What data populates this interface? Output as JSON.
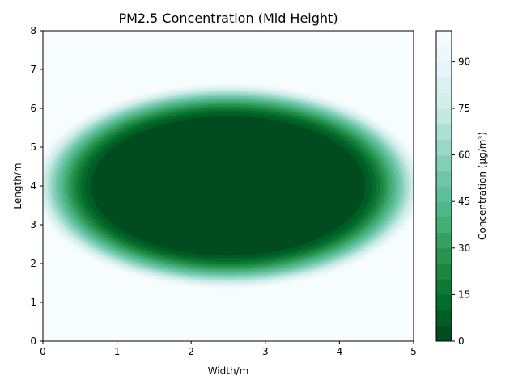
{
  "chart_data": {
    "type": "heatmap",
    "subtype": "filled-contour",
    "title": "PM2.5 Concentration (Mid Height)",
    "xlabel": "Width/m",
    "ylabel": "Length/m",
    "xlim": [
      0,
      5
    ],
    "ylim": [
      0,
      8
    ],
    "xticks": [
      "0",
      "1",
      "2",
      "3",
      "4",
      "5"
    ],
    "yticks": [
      "0",
      "1",
      "2",
      "3",
      "4",
      "5",
      "6",
      "7",
      "8"
    ],
    "colorbar": {
      "label": "Concentration (μg/m³)",
      "range": [
        0,
        100
      ],
      "levels": [
        0,
        5,
        10,
        15,
        20,
        25,
        30,
        35,
        40,
        45,
        50,
        55,
        60,
        65,
        70,
        75,
        80,
        85,
        90,
        95,
        100
      ],
      "ticks": [
        "0",
        "15",
        "30",
        "45",
        "60",
        "75",
        "90"
      ],
      "colormap": "BuGn_r",
      "colors": [
        "#00441b",
        "#006d2c",
        "#238b45",
        "#41ae76",
        "#66c2a4",
        "#99d8c9",
        "#ccece6",
        "#e5f5f9",
        "#f7fcfd"
      ]
    },
    "field": {
      "description_values": "Concentration ~0 in central region around (2.5, 4), rising to ~100 near the walls",
      "center": [
        2.5,
        4.0
      ],
      "core_semi_axes": [
        1.85,
        1.8
      ],
      "background_value": 100
    }
  }
}
